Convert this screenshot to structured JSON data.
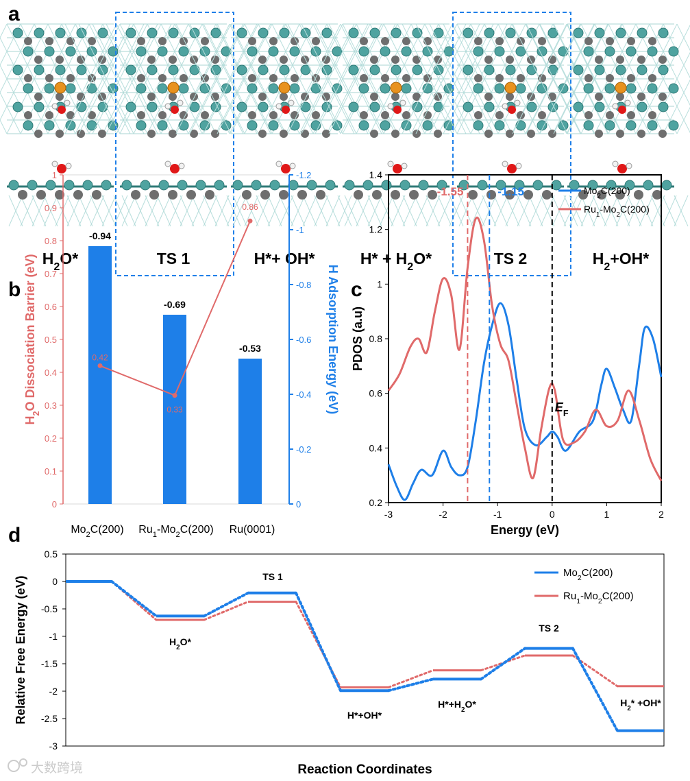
{
  "panel_labels": {
    "a": "a",
    "b": "b",
    "c": "c",
    "d": "d"
  },
  "colors": {
    "blue": "#1e7fe8",
    "red": "#e06a6a",
    "teal": "#4fa3a0",
    "grey": "#6e6e6e",
    "orange": "#e8921e",
    "oxygen": "#e01818",
    "hydrogen": "#f2f2f2",
    "black": "#000000"
  },
  "panel_a": {
    "states": [
      {
        "label_main": "H",
        "label_sub": "2",
        "label_tail": "O*",
        "boxed": false
      },
      {
        "label_main": "TS 1",
        "label_sub": "",
        "label_tail": "",
        "boxed": true
      },
      {
        "label_main": "H*+ OH*",
        "label_sub": "",
        "label_tail": "",
        "boxed": false
      },
      {
        "label_main": "H* + H",
        "label_sub": "2",
        "label_tail": "O*",
        "boxed": false
      },
      {
        "label_main": "TS 2",
        "label_sub": "",
        "label_tail": "",
        "boxed": true
      },
      {
        "label_main": "H",
        "label_sub": "2",
        "label_tail": "+OH*",
        "boxed": false
      }
    ]
  },
  "chart_data": [
    {
      "id": "b",
      "type": "bar",
      "categories": [
        "Mo2C(200)",
        "Ru1-Mo2C(200)",
        "Ru(0001)"
      ],
      "category_display": [
        {
          "main": "Mo",
          "sub": "2",
          "tail": "C(200)"
        },
        {
          "main": "Ru",
          "sub": "1",
          "tail": "-Mo",
          "sub2": "2",
          "tail2": "C(200)"
        },
        {
          "main": "Ru(0001)",
          "sub": "",
          "tail": ""
        }
      ],
      "bars": {
        "name": "H Adsorption Energy",
        "values": [
          -0.94,
          -0.69,
          -0.53
        ],
        "labels": [
          "-0.94",
          "-0.69",
          "-0.53"
        ]
      },
      "line": {
        "name": "H2O Dissociation Barrier",
        "values": [
          0.42,
          0.33,
          0.86
        ],
        "labels": [
          "0.42",
          "0.33",
          "0.86"
        ]
      },
      "left_axis": {
        "label_parts": [
          "H",
          "2",
          "O Dissociation  Barrier (eV)"
        ],
        "ylim": [
          0,
          1
        ],
        "ticks": [
          "0",
          "0.1",
          "0.2",
          "0.3",
          "0.4",
          "0.5",
          "0.6",
          "0.7",
          "0.8",
          "0.9",
          "1"
        ]
      },
      "right_axis": {
        "label": "H Adsorption Energy (eV)",
        "ylim": [
          0,
          -1.2
        ],
        "ticks": [
          "0",
          "-0.2",
          "-0.4",
          "-0.6",
          "-0.8",
          "-1",
          "-1.2"
        ]
      }
    },
    {
      "id": "c",
      "type": "line",
      "xlabel": "Energy (eV)",
      "ylabel": "PDOS (a.u)",
      "xlim": [
        -3,
        2
      ],
      "ylim": [
        0.2,
        1.4
      ],
      "xticks": [
        "-3",
        "-2",
        "-1",
        "0",
        "1",
        "2"
      ],
      "yticks": [
        "0.2",
        "0.4",
        "0.6",
        "0.8",
        "1",
        "1.2",
        "1.4"
      ],
      "series": [
        {
          "name": "Mo2C(200)",
          "legend_main": "Mo",
          "legend_sub": "2",
          "legend_tail": "C(200)",
          "x": [
            -3,
            -2.85,
            -2.7,
            -2.55,
            -2.4,
            -2.2,
            -2.0,
            -1.85,
            -1.7,
            -1.55,
            -1.4,
            -1.25,
            -1.1,
            -0.95,
            -0.8,
            -0.65,
            -0.5,
            -0.3,
            -0.1,
            0.0,
            0.1,
            0.25,
            0.5,
            0.75,
            0.9,
            1.0,
            1.15,
            1.3,
            1.45,
            1.6,
            1.7,
            1.85,
            2.0
          ],
          "y": [
            0.34,
            0.26,
            0.21,
            0.27,
            0.32,
            0.3,
            0.39,
            0.33,
            0.3,
            0.33,
            0.5,
            0.71,
            0.85,
            0.93,
            0.85,
            0.65,
            0.47,
            0.41,
            0.44,
            0.46,
            0.44,
            0.39,
            0.46,
            0.5,
            0.63,
            0.69,
            0.62,
            0.54,
            0.5,
            0.71,
            0.84,
            0.8,
            0.66
          ]
        },
        {
          "name": "Ru1-Mo2C(200)",
          "legend_main": "Ru",
          "legend_sub": "1",
          "legend_tail": "-Mo",
          "legend_sub2": "2",
          "legend_tail2": "C(200)",
          "x": [
            -3,
            -2.8,
            -2.6,
            -2.45,
            -2.3,
            -2.15,
            -2.0,
            -1.85,
            -1.7,
            -1.55,
            -1.4,
            -1.25,
            -1.1,
            -0.95,
            -0.8,
            -0.65,
            -0.5,
            -0.35,
            -0.2,
            -0.05,
            0.05,
            0.2,
            0.4,
            0.6,
            0.8,
            1.0,
            1.2,
            1.4,
            1.6,
            1.8,
            2.0
          ],
          "y": [
            0.61,
            0.67,
            0.77,
            0.8,
            0.75,
            0.9,
            1.02,
            0.96,
            0.76,
            1.06,
            1.24,
            1.16,
            0.92,
            0.78,
            0.72,
            0.56,
            0.4,
            0.29,
            0.47,
            0.62,
            0.61,
            0.43,
            0.42,
            0.46,
            0.54,
            0.48,
            0.5,
            0.61,
            0.5,
            0.36,
            0.28
          ]
        }
      ],
      "vlines": [
        {
          "x": -1.55,
          "label": "-1.55",
          "color": "red"
        },
        {
          "x": -1.15,
          "label": "-1.15",
          "color": "blue"
        },
        {
          "x": 0,
          "label_main": "E",
          "label_sub": "F",
          "color": "black"
        }
      ]
    },
    {
      "id": "d",
      "type": "line",
      "ylabel": "Relative Free Energy  (eV)",
      "xlabel": "Reaction Coordinates",
      "ylim": [
        -3,
        0.5
      ],
      "yticks": [
        "0.5",
        "0",
        "-0.5",
        "-1",
        "-1.5",
        "-2",
        "-2.5",
        "-3"
      ],
      "states": [
        {
          "label": "",
          "mo2c": 0.0,
          "ru1": 0.0
        },
        {
          "label_main": "H",
          "label_sub": "2",
          "label_tail": "O*",
          "mo2c": -0.63,
          "ru1": -0.7
        },
        {
          "label_main": "TS 1",
          "label_sub": "",
          "label_tail": "",
          "mo2c": -0.21,
          "ru1": -0.37
        },
        {
          "label_main": "H*+OH*",
          "label_sub": "",
          "label_tail": "",
          "mo2c": -1.99,
          "ru1": -1.93
        },
        {
          "label_main": "H*+H",
          "label_sub": "2",
          "label_tail": "O*",
          "mo2c": -1.78,
          "ru1": -1.62
        },
        {
          "label_main": "TS 2",
          "label_sub": "",
          "label_tail": "",
          "mo2c": -1.22,
          "ru1": -1.35
        },
        {
          "label_main": "H",
          "label_sub": "2",
          "label_tail": "* +OH*",
          "mo2c": -2.72,
          "ru1": -1.91
        }
      ],
      "legend": [
        {
          "name": "Mo2C(200)",
          "main": "Mo",
          "sub": "2",
          "tail": "C(200)"
        },
        {
          "name": "Ru1-Mo2C(200)",
          "main": "Ru",
          "sub": "1",
          "tail": "-Mo",
          "sub2": "2",
          "tail2": "C(200)"
        }
      ]
    }
  ],
  "watermark": "大数跨境"
}
